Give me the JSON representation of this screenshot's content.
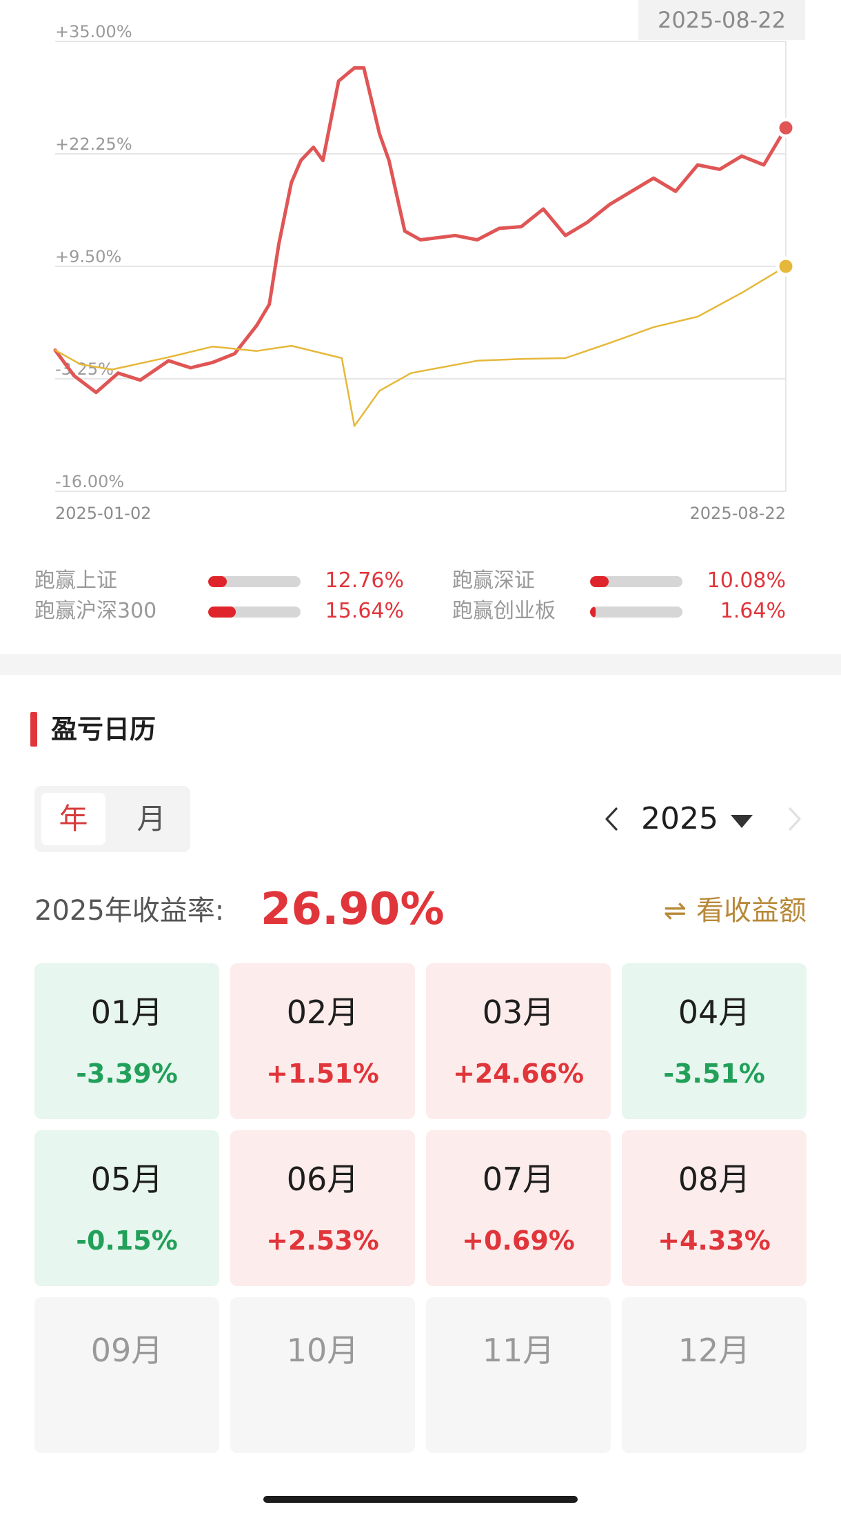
{
  "chart_data": {
    "type": "line",
    "y_ticks": [
      "+35.00%",
      "+22.25%",
      "+9.50%",
      "-3.25%",
      "-16.00%"
    ],
    "ylim": [
      -16.0,
      35.0
    ],
    "x_start_label": "2025-01-02",
    "x_end_label": "2025-08-22",
    "hover_date": "2025-08-22",
    "series": [
      {
        "color": "#e05555",
        "dates": [
          "2025-01-02",
          "2025-01-08",
          "2025-01-15",
          "2025-01-22",
          "2025-01-29",
          "2025-02-07",
          "2025-02-14",
          "2025-02-21",
          "2025-02-28",
          "2025-03-07",
          "2025-03-11",
          "2025-03-14",
          "2025-03-18",
          "2025-03-21",
          "2025-03-25",
          "2025-03-28",
          "2025-04-02",
          "2025-04-07",
          "2025-04-10",
          "2025-04-15",
          "2025-04-18",
          "2025-04-23",
          "2025-04-28",
          "2025-05-09",
          "2025-05-16",
          "2025-05-23",
          "2025-05-30",
          "2025-06-06",
          "2025-06-13",
          "2025-06-20",
          "2025-06-27",
          "2025-07-04",
          "2025-07-11",
          "2025-07-18",
          "2025-07-25",
          "2025-08-01",
          "2025-08-08",
          "2025-08-15",
          "2025-08-22"
        ],
        "values": [
          0.0,
          -2.9,
          -4.8,
          -2.6,
          -3.4,
          -1.2,
          -2.0,
          -1.4,
          -0.4,
          2.8,
          5.2,
          12.0,
          19.0,
          21.5,
          23.0,
          21.5,
          30.5,
          32.0,
          32.0,
          24.5,
          21.5,
          13.5,
          12.5,
          13.0,
          12.5,
          13.8,
          14.0,
          16.0,
          13.0,
          14.5,
          16.5,
          18.0,
          19.5,
          18.0,
          21.0,
          20.5,
          22.0,
          21.0,
          25.2
        ]
      },
      {
        "color": "#e6b83a",
        "dates": [
          "2025-01-02",
          "2025-01-10",
          "2025-01-20",
          "2025-02-07",
          "2025-02-21",
          "2025-03-07",
          "2025-03-18",
          "2025-04-03",
          "2025-04-07",
          "2025-04-15",
          "2025-04-25",
          "2025-05-16",
          "2025-05-30",
          "2025-06-13",
          "2025-06-27",
          "2025-07-11",
          "2025-07-25",
          "2025-08-08",
          "2025-08-22"
        ],
        "values": [
          0.0,
          -1.6,
          -2.2,
          -0.8,
          0.4,
          -0.1,
          0.5,
          -0.9,
          -8.6,
          -4.6,
          -2.6,
          -1.2,
          -1.0,
          -0.9,
          0.8,
          2.6,
          3.8,
          6.5,
          9.5
        ]
      }
    ]
  },
  "beat": [
    {
      "label": "跑赢上证",
      "value": "12.76%",
      "fill": 0.2
    },
    {
      "label": "跑赢深证",
      "value": "10.08%",
      "fill": 0.2
    },
    {
      "label": "跑赢沪深300",
      "value": "15.64%",
      "fill": 0.3
    },
    {
      "label": "跑赢创业板",
      "value": "1.64%",
      "fill": 0.04
    }
  ],
  "calendar": {
    "title": "盈亏日历",
    "toggle_year": "年",
    "toggle_month": "月",
    "year": "2025",
    "return_label": "2025年收益率:",
    "return_value": "26.90%",
    "switch_label": "看收益额",
    "switch_icon": "swap-arrows-icon",
    "months": [
      {
        "name": "01月",
        "ret": "-3.39%",
        "status": "down"
      },
      {
        "name": "02月",
        "ret": "+1.51%",
        "status": "up"
      },
      {
        "name": "03月",
        "ret": "+24.66%",
        "status": "up"
      },
      {
        "name": "04月",
        "ret": "-3.51%",
        "status": "down"
      },
      {
        "name": "05月",
        "ret": "-0.15%",
        "status": "down"
      },
      {
        "name": "06月",
        "ret": "+2.53%",
        "status": "up"
      },
      {
        "name": "07月",
        "ret": "+0.69%",
        "status": "up"
      },
      {
        "name": "08月",
        "ret": "+4.33%",
        "status": "up"
      },
      {
        "name": "09月",
        "ret": "",
        "status": "empty"
      },
      {
        "name": "10月",
        "ret": "",
        "status": "empty"
      },
      {
        "name": "11月",
        "ret": "",
        "status": "empty"
      },
      {
        "name": "12月",
        "ret": "",
        "status": "empty"
      }
    ]
  },
  "colors": {
    "up": "#e0353a",
    "down": "#22a05a",
    "accent_gold": "#b8893a"
  }
}
